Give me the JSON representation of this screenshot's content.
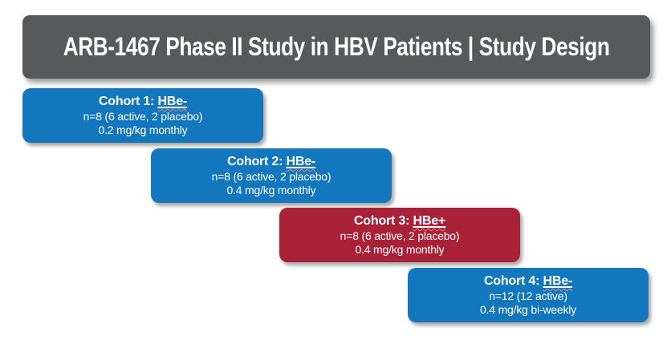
{
  "slide": {
    "title": "ARB-1467 Phase II Study in HBV Patients | Study Design"
  },
  "colors": {
    "title_bar_gray": "#58595B",
    "cohort_blue": "#1277BD",
    "cohort_red": "#A92138",
    "text_white": "#ffffff",
    "spellcheck_red": "#e87f85"
  },
  "cohorts": [
    {
      "label_prefix": "Cohort 1: ",
      "label_term": "HBe-",
      "line1": "n=8 (6 active, 2 placebo)",
      "line2": "0.2 mg/kg monthly",
      "color": "#1277BD"
    },
    {
      "label_prefix": "Cohort 2: ",
      "label_term": "HBe-",
      "line1": "n=8 (6 active, 2 placebo)",
      "line2": "0.4 mg/kg monthly",
      "color": "#1277BD"
    },
    {
      "label_prefix": "Cohort 3: ",
      "label_term": "HBe+",
      "line1": "n=8 (6 active, 2 placebo)",
      "line2": "0.4 mg/kg monthly",
      "color": "#A92138"
    },
    {
      "label_prefix": "Cohort 4: ",
      "label_term": "HBe-",
      "line1": "n=12 (12 active)",
      "line2": "0.4 mg/kg bi-weekly",
      "color": "#1277BD"
    }
  ]
}
